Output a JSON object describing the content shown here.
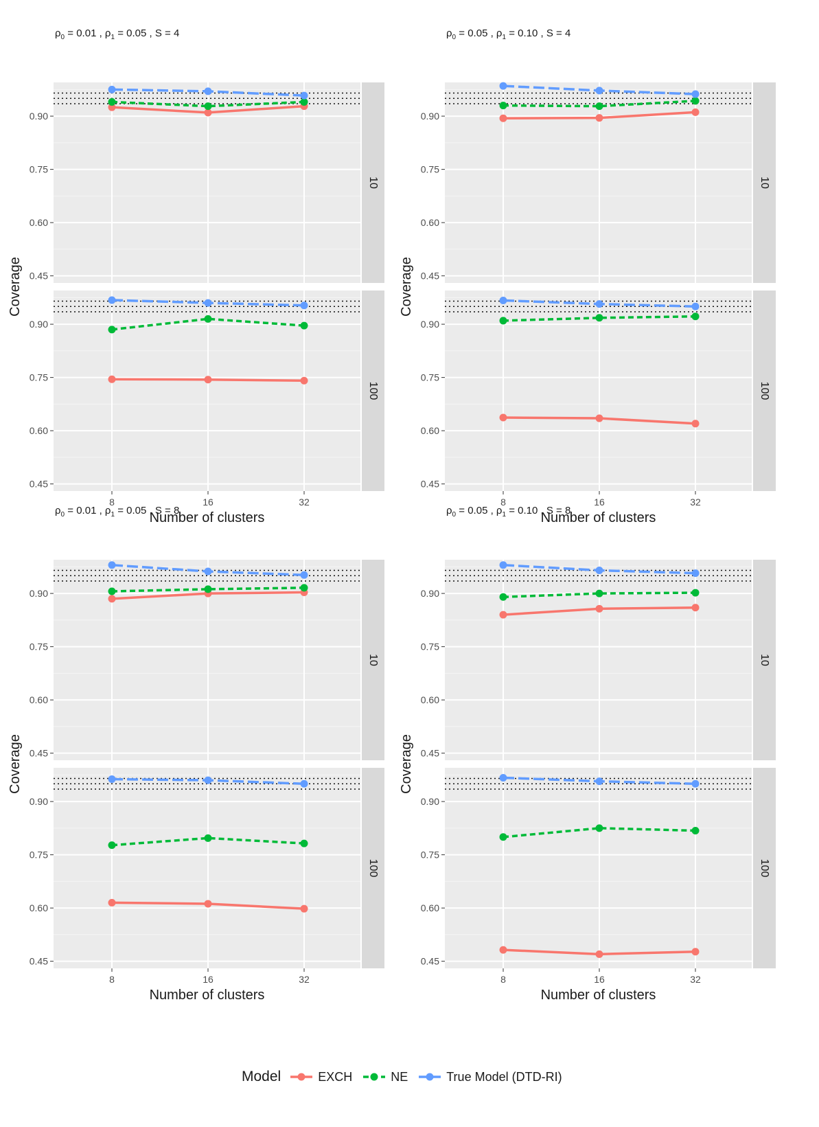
{
  "legend": {
    "title": "Model",
    "items": [
      {
        "label": "EXCH",
        "color": "#F8766D",
        "dash": "solid"
      },
      {
        "label": "NE",
        "color": "#00BA38",
        "dash": "dashed"
      },
      {
        "label": "True Model (DTD-RI)",
        "color": "#619CFF",
        "dash": "longdash"
      }
    ]
  },
  "chart_data": [
    {
      "type": "line",
      "title": {
        "rho0": "0.01",
        "rho1": "0.05",
        "S": "4"
      },
      "xlabel": "Number of clusters",
      "ylabel": "Coverage",
      "categories": [
        "8",
        "16",
        "32"
      ],
      "yticks": [
        "0.45",
        "0.60",
        "0.75",
        "0.90"
      ],
      "ylim": [
        0.43,
        0.995
      ],
      "reference_lines": [
        0.935,
        0.95,
        0.965
      ],
      "facets": [
        {
          "strip": "10",
          "series": [
            {
              "name": "EXCH",
              "values": [
                0.925,
                0.91,
                0.928
              ]
            },
            {
              "name": "NE",
              "values": [
                0.94,
                0.928,
                0.94
              ]
            },
            {
              "name": "True Model (DTD-RI)",
              "values": [
                0.975,
                0.97,
                0.958
              ]
            }
          ]
        },
        {
          "strip": "100",
          "series": [
            {
              "name": "EXCH",
              "values": [
                0.745,
                0.744,
                0.741
              ]
            },
            {
              "name": "NE",
              "values": [
                0.885,
                0.915,
                0.896
              ]
            },
            {
              "name": "True Model (DTD-RI)",
              "values": [
                0.968,
                0.96,
                0.953
              ]
            }
          ]
        }
      ]
    },
    {
      "type": "line",
      "title": {
        "rho0": "0.05",
        "rho1": "0.10",
        "S": "4"
      },
      "xlabel": "Number of clusters",
      "ylabel": "Coverage",
      "categories": [
        "8",
        "16",
        "32"
      ],
      "yticks": [
        "0.45",
        "0.60",
        "0.75",
        "0.90"
      ],
      "ylim": [
        0.43,
        0.995
      ],
      "reference_lines": [
        0.935,
        0.95,
        0.965
      ],
      "facets": [
        {
          "strip": "10",
          "series": [
            {
              "name": "EXCH",
              "values": [
                0.894,
                0.895,
                0.911
              ]
            },
            {
              "name": "NE",
              "values": [
                0.93,
                0.928,
                0.943
              ]
            },
            {
              "name": "True Model (DTD-RI)",
              "values": [
                0.985,
                0.972,
                0.962
              ]
            }
          ]
        },
        {
          "strip": "100",
          "series": [
            {
              "name": "EXCH",
              "values": [
                0.637,
                0.635,
                0.62
              ]
            },
            {
              "name": "NE",
              "values": [
                0.91,
                0.918,
                0.922
              ]
            },
            {
              "name": "True Model (DTD-RI)",
              "values": [
                0.967,
                0.957,
                0.95
              ]
            }
          ]
        }
      ]
    },
    {
      "type": "line",
      "title": {
        "rho0": "0.01",
        "rho1": "0.05",
        "S": "8"
      },
      "xlabel": "Number of clusters",
      "ylabel": "Coverage",
      "categories": [
        "8",
        "16",
        "32"
      ],
      "yticks": [
        "0.45",
        "0.60",
        "0.75",
        "0.90"
      ],
      "ylim": [
        0.43,
        0.995
      ],
      "reference_lines": [
        0.935,
        0.95,
        0.965
      ],
      "facets": [
        {
          "strip": "10",
          "series": [
            {
              "name": "EXCH",
              "values": [
                0.885,
                0.9,
                0.903
              ]
            },
            {
              "name": "NE",
              "values": [
                0.906,
                0.912,
                0.916
              ]
            },
            {
              "name": "True Model (DTD-RI)",
              "values": [
                0.98,
                0.962,
                0.952
              ]
            }
          ]
        },
        {
          "strip": "100",
          "series": [
            {
              "name": "EXCH",
              "values": [
                0.615,
                0.612,
                0.598
              ]
            },
            {
              "name": "NE",
              "values": [
                0.777,
                0.797,
                0.782
              ]
            },
            {
              "name": "True Model (DTD-RI)",
              "values": [
                0.963,
                0.96,
                0.95
              ]
            }
          ]
        }
      ]
    },
    {
      "type": "line",
      "title": {
        "rho0": "0.05",
        "rho1": "0.10",
        "S": "8"
      },
      "xlabel": "Number of clusters",
      "ylabel": "Coverage",
      "categories": [
        "8",
        "16",
        "32"
      ],
      "yticks": [
        "0.45",
        "0.60",
        "0.75",
        "0.90"
      ],
      "ylim": [
        0.43,
        0.995
      ],
      "reference_lines": [
        0.935,
        0.95,
        0.965
      ],
      "facets": [
        {
          "strip": "10",
          "series": [
            {
              "name": "EXCH",
              "values": [
                0.84,
                0.857,
                0.86
              ]
            },
            {
              "name": "NE",
              "values": [
                0.89,
                0.9,
                0.902
              ]
            },
            {
              "name": "True Model (DTD-RI)",
              "values": [
                0.98,
                0.965,
                0.957
              ]
            }
          ]
        },
        {
          "strip": "100",
          "series": [
            {
              "name": "EXCH",
              "values": [
                0.482,
                0.47,
                0.477
              ]
            },
            {
              "name": "NE",
              "values": [
                0.8,
                0.825,
                0.818
              ]
            },
            {
              "name": "True Model (DTD-RI)",
              "values": [
                0.967,
                0.957,
                0.95
              ]
            }
          ]
        }
      ]
    }
  ]
}
